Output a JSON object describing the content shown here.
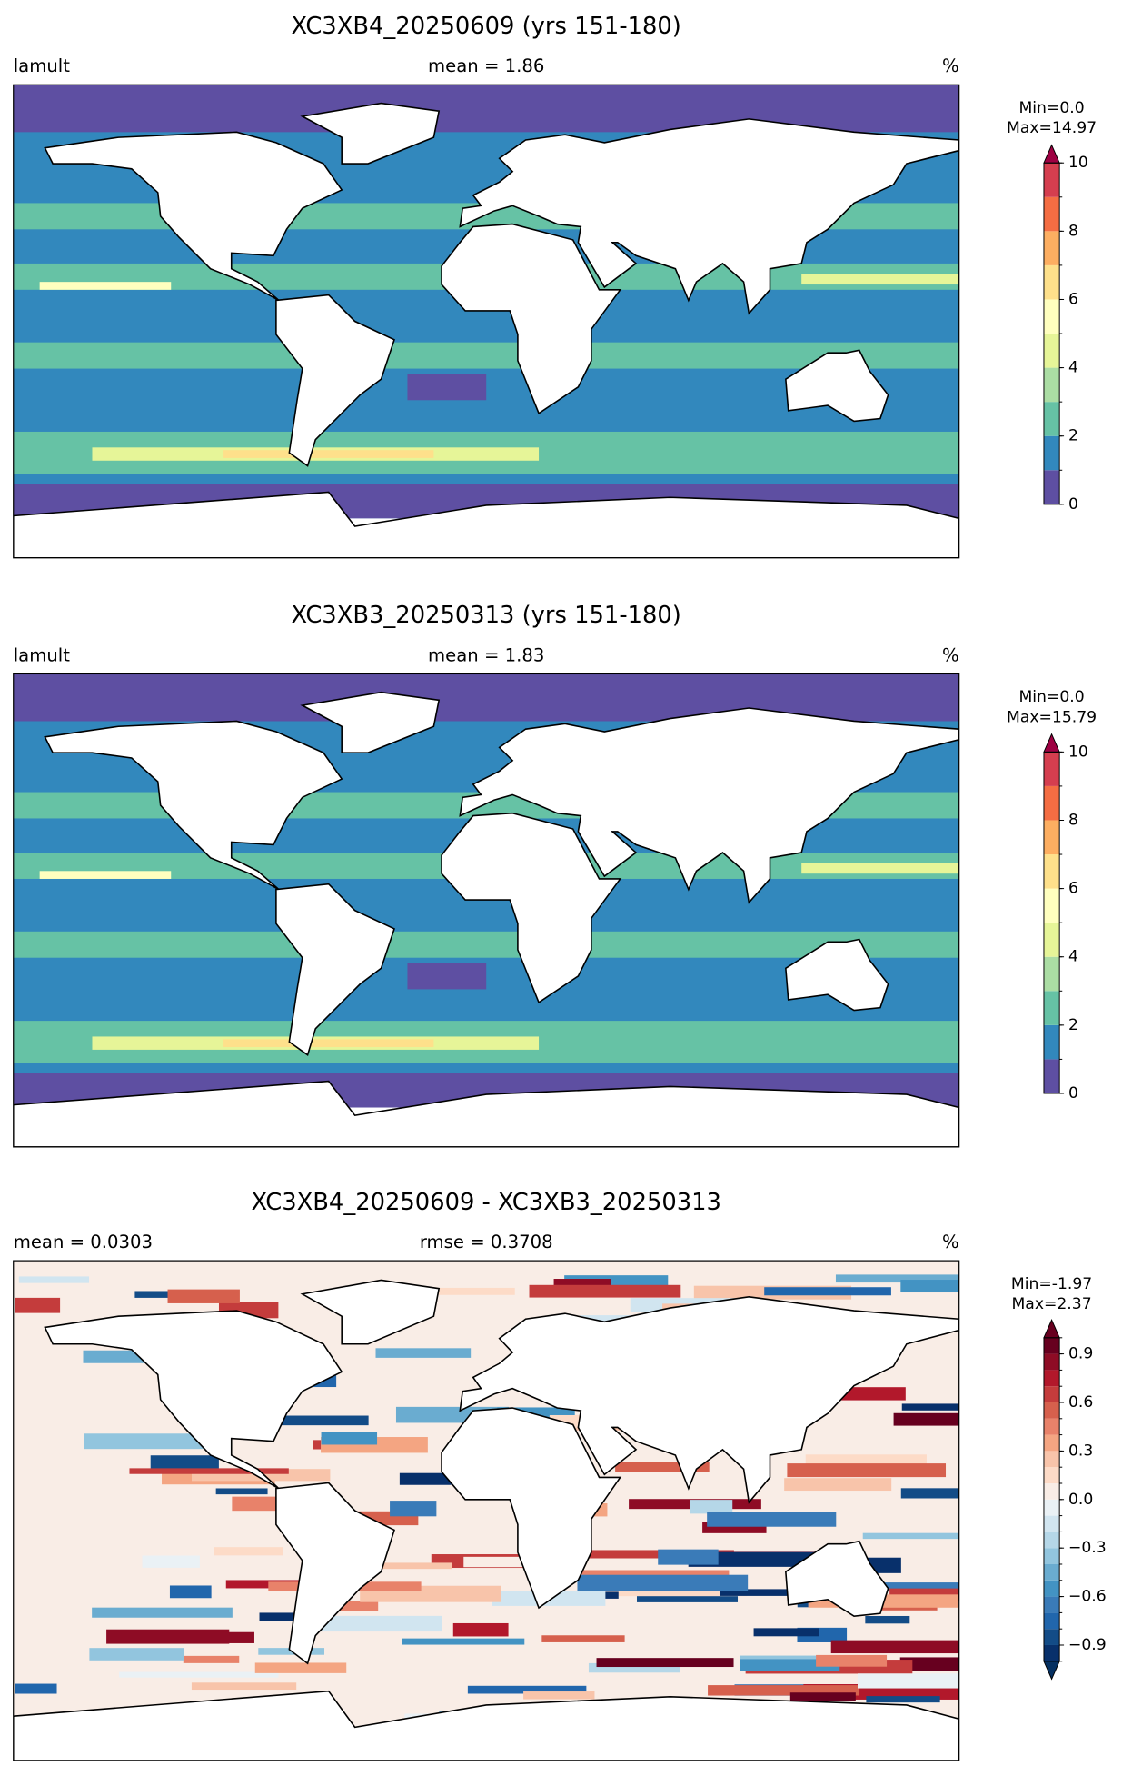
{
  "chart_data": [
    {
      "type": "map",
      "title": "XC3XB4_20250609 (yrs 151-180)",
      "left_label": "lamult",
      "center_label": "mean = 1.86",
      "unit_label": "%",
      "min_label": "Min=0.0",
      "max_label": "Max=14.97",
      "colorbar": {
        "lim": [
          0,
          10
        ],
        "ticks": [
          0,
          2,
          4,
          6,
          8,
          10
        ],
        "levels": [
          0,
          1,
          2,
          3,
          4,
          5,
          6,
          7,
          8,
          9,
          10
        ],
        "colors": [
          "#5e4fa2",
          "#3288bd",
          "#66c2a5",
          "#abdda4",
          "#e6f598",
          "#ffffbf",
          "#fee08b",
          "#fdae61",
          "#f46d43",
          "#d53e4f"
        ],
        "extend": "max",
        "over_color": "#9e0142"
      }
    },
    {
      "type": "map",
      "title": "XC3XB3_20250313 (yrs 151-180)",
      "left_label": "lamult",
      "center_label": "mean = 1.83",
      "unit_label": "%",
      "min_label": "Min=0.0",
      "max_label": "Max=15.79",
      "colorbar": {
        "lim": [
          0,
          10
        ],
        "ticks": [
          0,
          2,
          4,
          6,
          8,
          10
        ],
        "levels": [
          0,
          1,
          2,
          3,
          4,
          5,
          6,
          7,
          8,
          9,
          10
        ],
        "colors": [
          "#5e4fa2",
          "#3288bd",
          "#66c2a5",
          "#abdda4",
          "#e6f598",
          "#ffffbf",
          "#fee08b",
          "#fdae61",
          "#f46d43",
          "#d53e4f"
        ],
        "extend": "max",
        "over_color": "#9e0142"
      }
    },
    {
      "type": "map",
      "title": "XC3XB4_20250609 - XC3XB3_20250313",
      "left_label": "mean = 0.0303",
      "center_label": "rmse = 0.3708",
      "unit_label": "%",
      "min_label": "Min=-1.97",
      "max_label": "Max=2.37",
      "colorbar": {
        "lim": [
          -1,
          1
        ],
        "ticks": [
          {
            "value": -0.9,
            "label": "−0.9"
          },
          {
            "value": -0.6,
            "label": "−0.6"
          },
          {
            "value": -0.3,
            "label": "−0.3"
          },
          {
            "value": 0,
            "label": "0.0"
          },
          0.3,
          0.6,
          0.9
        ],
        "levels": [
          -1,
          -0.9,
          -0.8,
          -0.7,
          -0.6,
          -0.5,
          -0.4,
          -0.3,
          -0.2,
          -0.1,
          0,
          0.1,
          0.2,
          0.3,
          0.4,
          0.5,
          0.6,
          0.7,
          0.8,
          0.9,
          1
        ],
        "colors": [
          "#08306b",
          "#134c87",
          "#2166ac",
          "#3a7bb8",
          "#4393c3",
          "#6aacd0",
          "#92c5de",
          "#b5d7e8",
          "#d1e5f0",
          "#eaf1f5",
          "#f9ede6",
          "#fddbc7",
          "#f8c4aa",
          "#f4a582",
          "#e8826a",
          "#d6604d",
          "#c43c3c",
          "#b2182b",
          "#8e0c25",
          "#67001f"
        ],
        "extend": "both",
        "under_color": "#053061",
        "over_color": "#67001f"
      }
    }
  ]
}
